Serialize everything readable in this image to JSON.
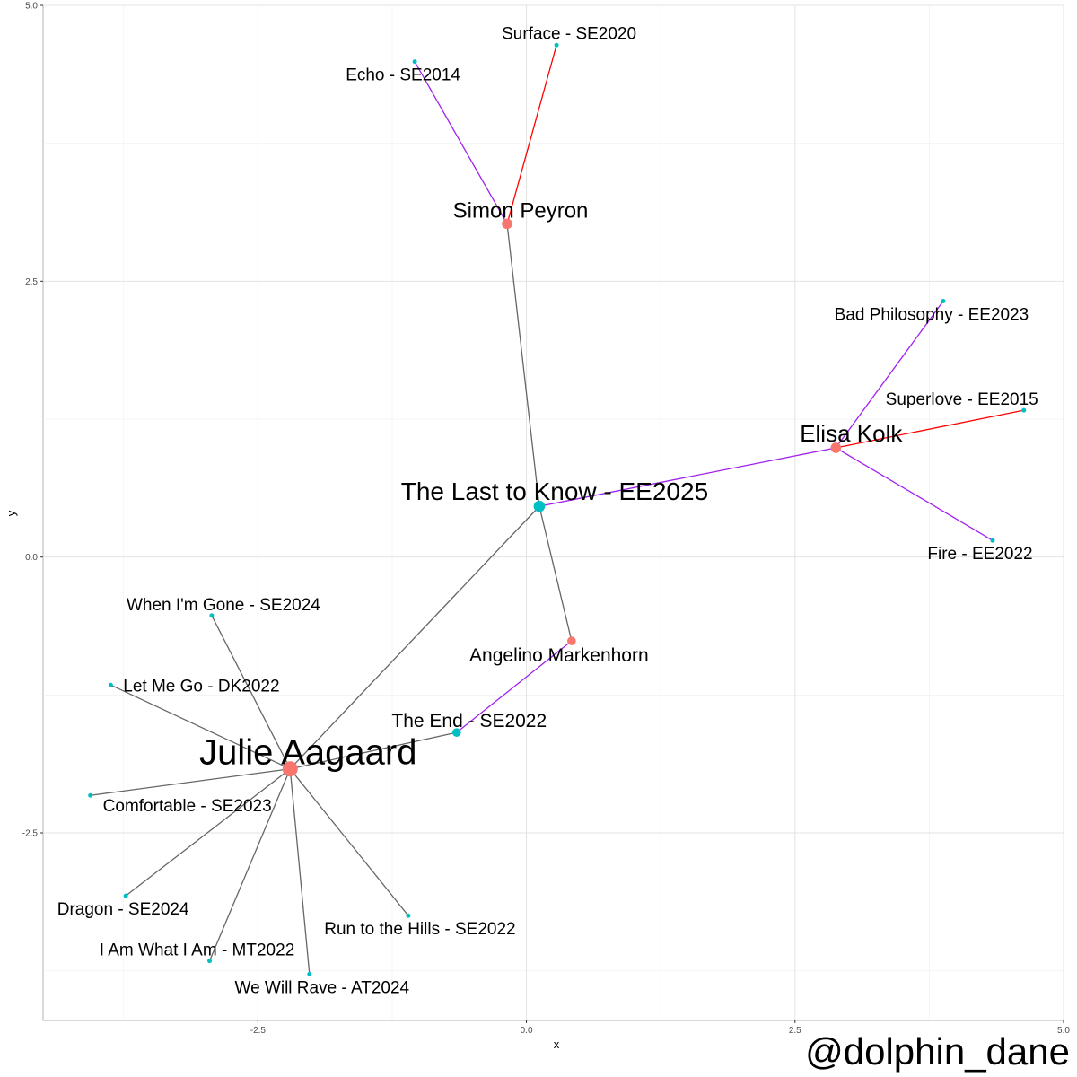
{
  "chart_data": {
    "type": "network",
    "xlabel": "x",
    "ylabel": "y",
    "xlim": [
      -4.5,
      5.0
    ],
    "ylim": [
      -4.2,
      5.0
    ],
    "x_ticks": [
      -2.5,
      0.0,
      2.5,
      5.0
    ],
    "x_tick_labels": [
      "-2.5",
      "0.0",
      "2.5",
      "5.0"
    ],
    "y_ticks": [
      -2.5,
      0.0,
      2.5,
      5.0
    ],
    "y_tick_labels": [
      "-2.5",
      "0.0",
      "2.5",
      "5.0"
    ],
    "grid": true,
    "legend": "none",
    "colors": {
      "artist": "#F8766D",
      "song": "#00BFC4",
      "edge_gray": "#666666",
      "edge_purple": "#A020F0",
      "edge_red": "#FF0000"
    },
    "nodes": [
      {
        "id": "julie",
        "label": "Julie Aagaard",
        "kind": "artist",
        "x": -2.2,
        "y": -1.92,
        "size": "xl"
      },
      {
        "id": "simon",
        "label": "Simon Peyron",
        "kind": "artist",
        "x": -0.18,
        "y": 3.02,
        "size": "m"
      },
      {
        "id": "elisa",
        "label": "Elisa Kolk",
        "kind": "artist",
        "x": 2.88,
        "y": 0.99,
        "size": "m"
      },
      {
        "id": "angelino",
        "label": "Angelino Markenhorn",
        "kind": "artist",
        "x": 0.42,
        "y": -0.76,
        "size": "s"
      },
      {
        "id": "lasttoknow",
        "label": "The Last to Know - EE2025",
        "kind": "song",
        "x": 0.12,
        "y": 0.46,
        "size": "l"
      },
      {
        "id": "theend",
        "label": "The End - SE2022",
        "kind": "song",
        "x": -0.65,
        "y": -1.59,
        "size": "s"
      },
      {
        "id": "echo",
        "label": "Echo - SE2014",
        "kind": "song",
        "x": -1.04,
        "y": 4.49,
        "size": "xs"
      },
      {
        "id": "surface",
        "label": "Surface - SE2020",
        "kind": "song",
        "x": 0.28,
        "y": 4.64,
        "size": "xs"
      },
      {
        "id": "badphil",
        "label": "Bad Philosophy - EE2023",
        "kind": "song",
        "x": 3.88,
        "y": 2.32,
        "size": "xs"
      },
      {
        "id": "superlove",
        "label": "Superlove - EE2015",
        "kind": "song",
        "x": 4.63,
        "y": 1.33,
        "size": "xs"
      },
      {
        "id": "fire",
        "label": "Fire - EE2022",
        "kind": "song",
        "x": 4.34,
        "y": 0.15,
        "size": "xs"
      },
      {
        "id": "whenimgone",
        "label": "When I'm Gone - SE2024",
        "kind": "song",
        "x": -2.93,
        "y": -0.53,
        "size": "xs"
      },
      {
        "id": "letmego",
        "label": "Let Me Go - DK2022",
        "kind": "song",
        "x": -3.87,
        "y": -1.16,
        "size": "xs"
      },
      {
        "id": "comfortable",
        "label": "Comfortable - SE2023",
        "kind": "song",
        "x": -4.06,
        "y": -2.16,
        "size": "xs"
      },
      {
        "id": "dragon",
        "label": "Dragon - SE2024",
        "kind": "song",
        "x": -3.73,
        "y": -3.07,
        "size": "xs"
      },
      {
        "id": "iamwhat",
        "label": "I Am What I Am - MT2022",
        "kind": "song",
        "x": -2.95,
        "y": -3.66,
        "size": "xs"
      },
      {
        "id": "wewillrave",
        "label": "We Will Rave - AT2024",
        "kind": "song",
        "x": -2.02,
        "y": -3.78,
        "size": "xs"
      },
      {
        "id": "runhills",
        "label": "Run to the Hills - SE2022",
        "kind": "song",
        "x": -1.1,
        "y": -3.25,
        "size": "xs"
      }
    ],
    "edges": [
      {
        "from": "simon",
        "to": "echo",
        "color": "purple"
      },
      {
        "from": "simon",
        "to": "surface",
        "color": "red"
      },
      {
        "from": "simon",
        "to": "lasttoknow",
        "color": "gray"
      },
      {
        "from": "lasttoknow",
        "to": "elisa",
        "color": "purple"
      },
      {
        "from": "lasttoknow",
        "to": "angelino",
        "color": "gray"
      },
      {
        "from": "lasttoknow",
        "to": "julie",
        "color": "gray"
      },
      {
        "from": "elisa",
        "to": "badphil",
        "color": "purple"
      },
      {
        "from": "elisa",
        "to": "superlove",
        "color": "red"
      },
      {
        "from": "elisa",
        "to": "fire",
        "color": "purple"
      },
      {
        "from": "angelino",
        "to": "theend",
        "color": "purple"
      },
      {
        "from": "julie",
        "to": "theend",
        "color": "gray"
      },
      {
        "from": "julie",
        "to": "whenimgone",
        "color": "gray"
      },
      {
        "from": "julie",
        "to": "letmego",
        "color": "gray"
      },
      {
        "from": "julie",
        "to": "comfortable",
        "color": "gray"
      },
      {
        "from": "julie",
        "to": "dragon",
        "color": "gray"
      },
      {
        "from": "julie",
        "to": "iamwhat",
        "color": "gray"
      },
      {
        "from": "julie",
        "to": "wewillrave",
        "color": "gray"
      },
      {
        "from": "julie",
        "to": "runhills",
        "color": "gray"
      }
    ]
  },
  "watermark": "@dolphin_dane"
}
